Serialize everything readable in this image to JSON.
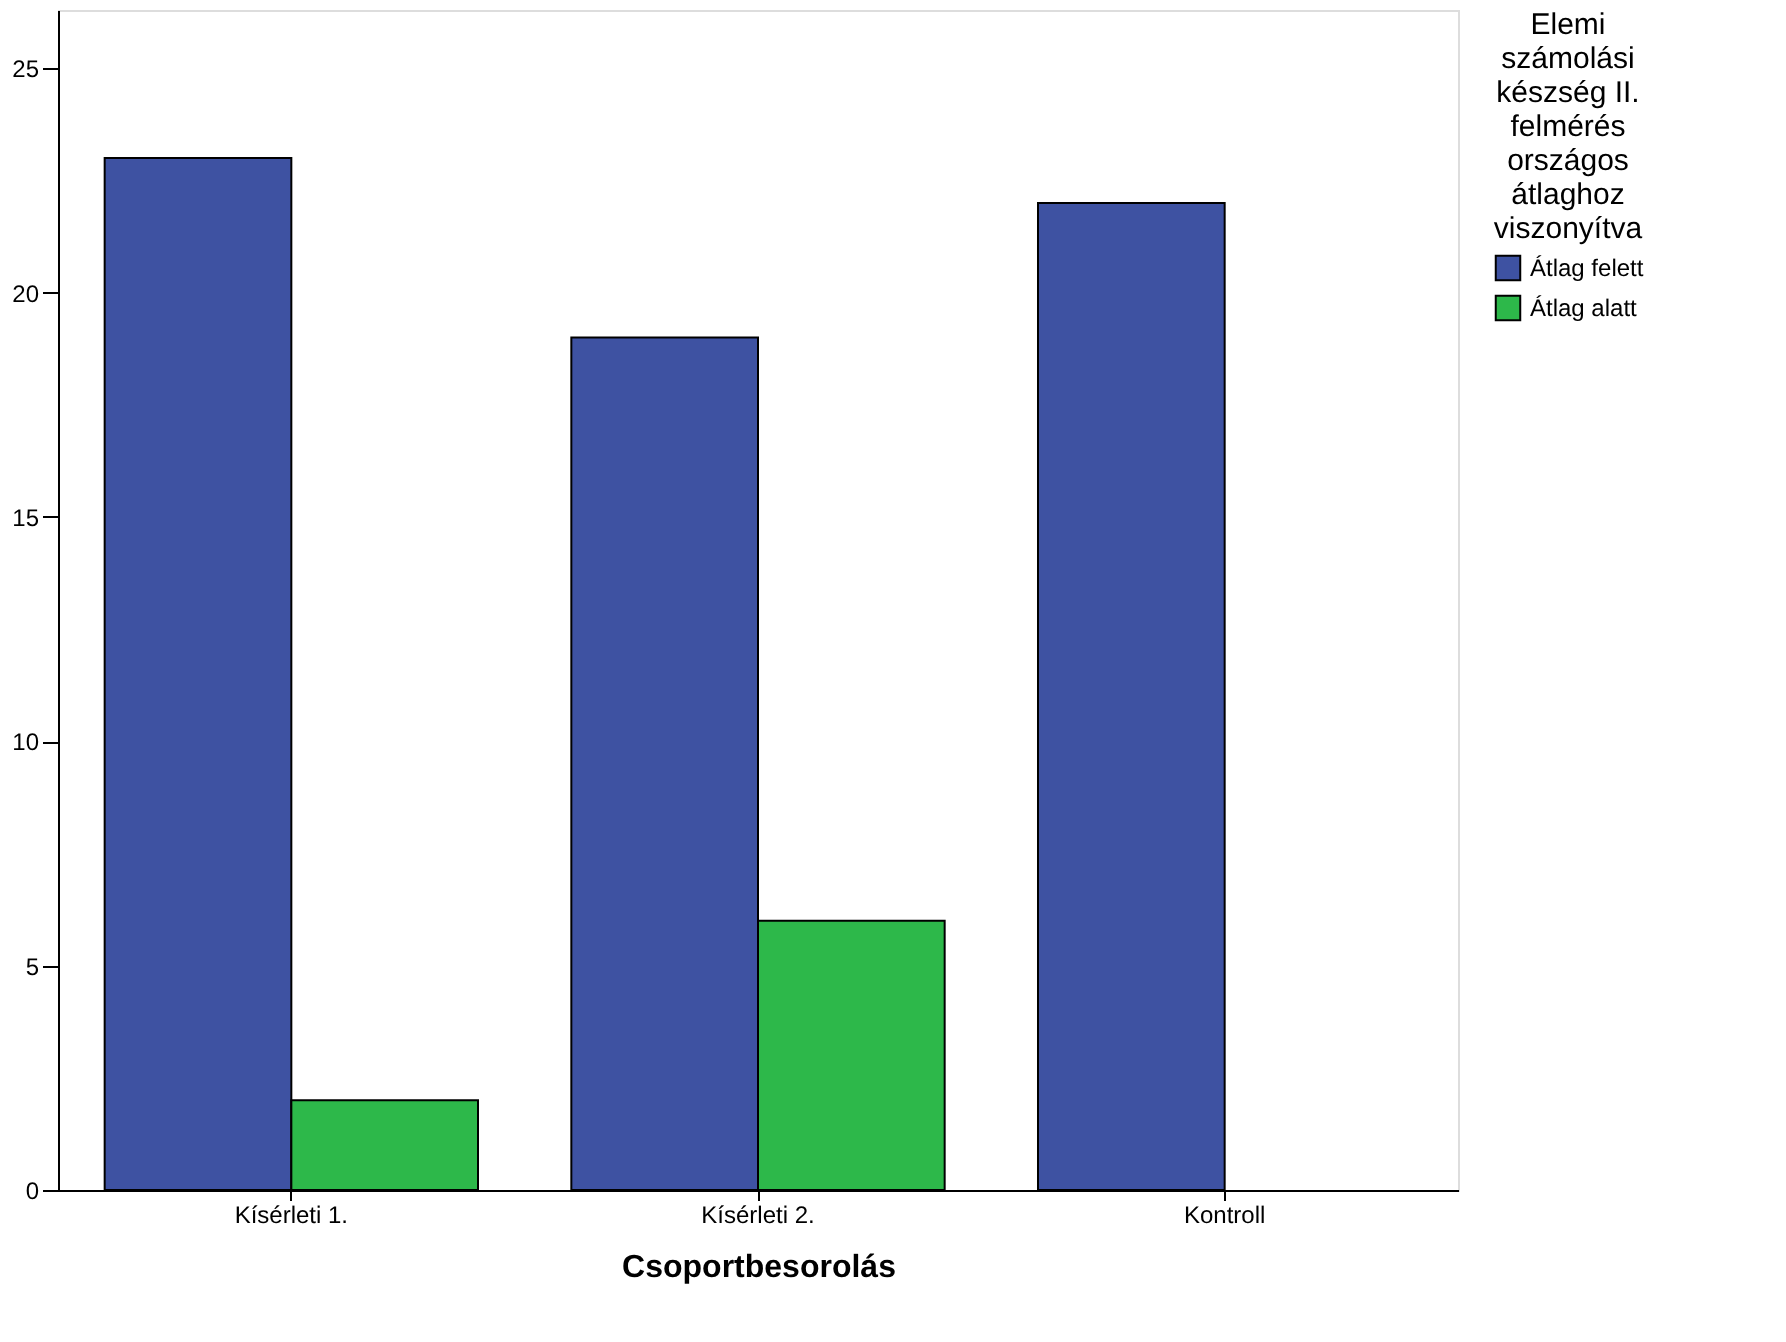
{
  "chart_data": {
    "type": "bar",
    "xlabel": "Csoportbesorolás",
    "legend_title": "Elemi számolási készség II. felmérés országos átlaghoz viszonyítva",
    "categories": [
      "Kísérleti 1.",
      "Kísérleti 2.",
      "Kontroll"
    ],
    "series": [
      {
        "name": "Átlag felett",
        "color": "#3e52a2",
        "values": [
          23,
          19,
          22
        ]
      },
      {
        "name": "Átlag alatt",
        "color": "#2db84a",
        "values": [
          2,
          6,
          null
        ]
      }
    ],
    "ylim": [
      0,
      26.3
    ],
    "yticks": [
      0,
      5,
      10,
      15,
      20,
      25
    ],
    "grid": false,
    "legend": "top right"
  }
}
